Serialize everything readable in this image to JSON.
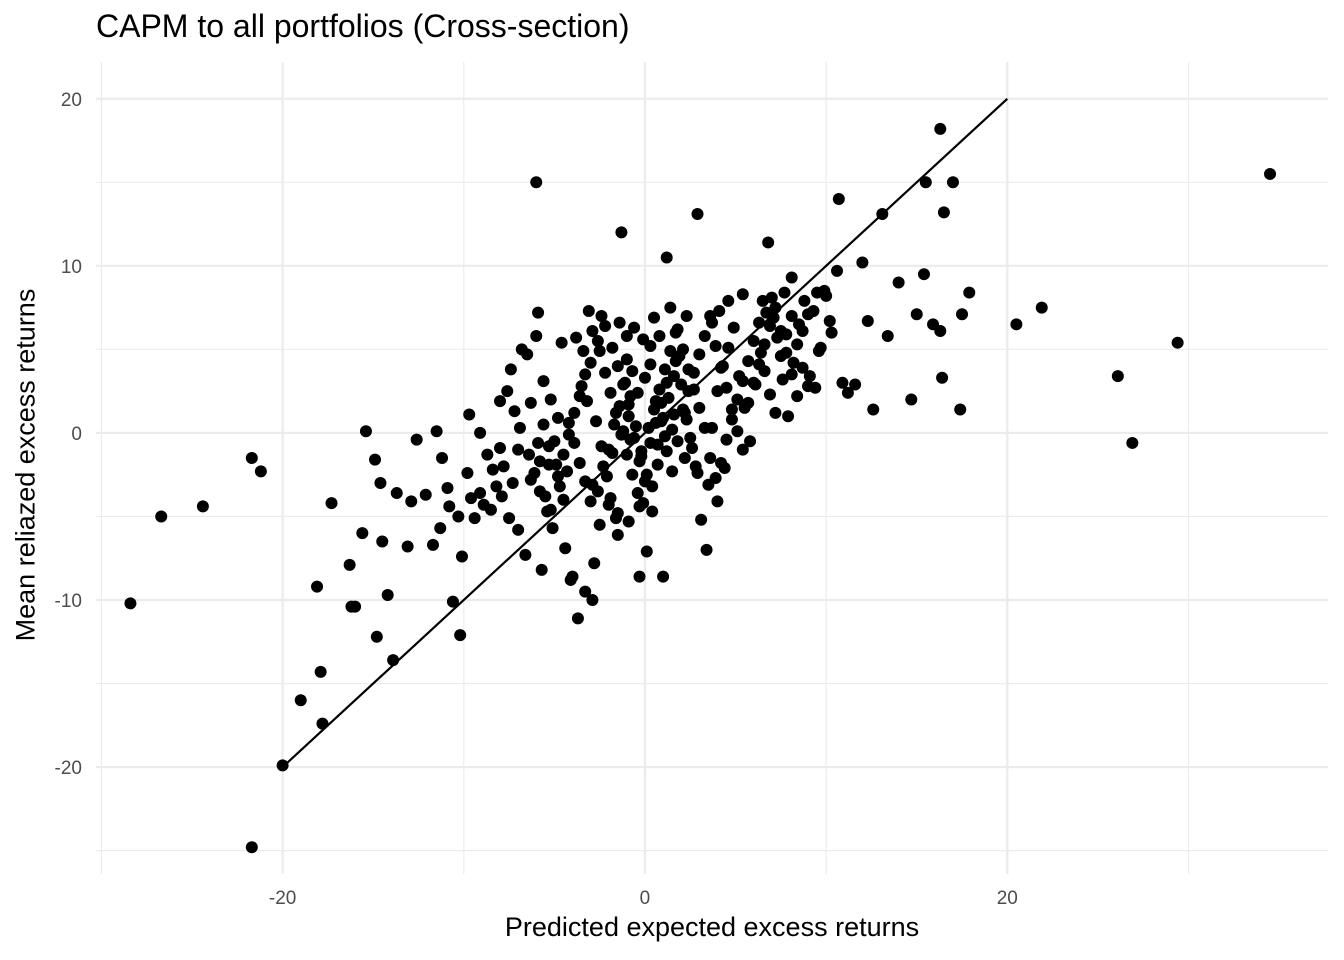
{
  "chart_data": {
    "type": "scatter",
    "title": "CAPM to all portfolios (Cross-section)",
    "xlabel": "Predicted expected excess returns",
    "ylabel": "Mean reliazed excess returns",
    "xlim": [
      -30.3,
      37.7
    ],
    "ylim": [
      -26.4,
      22.2
    ],
    "x_ticks": [
      -20,
      0,
      20
    ],
    "y_ticks": [
      -20,
      -10,
      0,
      10,
      20
    ],
    "x_tick_labels": [
      "-20",
      "0",
      "20"
    ],
    "y_tick_labels": [
      "-20",
      "-10",
      "0",
      "10",
      "20"
    ],
    "grid": true,
    "legend": "none",
    "colors": {
      "points": "#000000",
      "line": "#000000",
      "grid": "#ebebeb",
      "background": "#ffffff",
      "tick_text": "#4d4d4d"
    },
    "reference_line": {
      "type": "45-degree",
      "from": [
        -20,
        -20
      ],
      "to": [
        20,
        20
      ]
    },
    "points": [
      [
        -28.4,
        -10.2
      ],
      [
        -26.7,
        -5.0
      ],
      [
        -24.4,
        -4.4
      ],
      [
        -21.7,
        -1.5
      ],
      [
        -21.2,
        -2.3
      ],
      [
        -21.7,
        -24.8
      ],
      [
        -20.0,
        -19.9
      ],
      [
        -19.0,
        -16.0
      ],
      [
        -17.8,
        -17.4
      ],
      [
        -17.9,
        -14.3
      ],
      [
        -18.1,
        -9.2
      ],
      [
        -17.3,
        -4.2
      ],
      [
        -16.3,
        -7.9
      ],
      [
        -16.2,
        -10.4
      ],
      [
        -15.6,
        -6.0
      ],
      [
        -14.9,
        -1.6
      ],
      [
        -14.6,
        -3.0
      ],
      [
        -14.5,
        -6.5
      ],
      [
        -14.2,
        -9.7
      ],
      [
        -13.9,
        -13.6
      ],
      [
        -14.8,
        -12.2
      ],
      [
        -13.7,
        -3.6
      ],
      [
        -13.1,
        -6.8
      ],
      [
        -12.6,
        -0.4
      ],
      [
        -12.1,
        -3.7
      ],
      [
        -11.7,
        -6.7
      ],
      [
        -11.2,
        -1.5
      ],
      [
        -10.9,
        -3.3
      ],
      [
        -11.3,
        -5.7
      ],
      [
        -10.6,
        -10.1
      ],
      [
        -10.2,
        -12.1
      ],
      [
        -10.1,
        -7.4
      ],
      [
        -9.6,
        -3.9
      ],
      [
        -9.1,
        -3.6
      ],
      [
        -8.5,
        -4.6
      ],
      [
        -8.2,
        -3.2
      ],
      [
        -7.8,
        -2.0
      ],
      [
        -7.5,
        -5.1
      ],
      [
        -7.0,
        -5.8
      ],
      [
        -6.6,
        -7.3
      ],
      [
        -6.3,
        -2.8
      ],
      [
        -5.9,
        -0.6
      ],
      [
        -5.6,
        0.5
      ],
      [
        -5.3,
        -1.9
      ],
      [
        -9.7,
        1.1
      ],
      [
        -9.1,
        0.0
      ],
      [
        -8.7,
        -1.3
      ],
      [
        -8.0,
        -0.9
      ],
      [
        -7.6,
        2.5
      ],
      [
        -7.2,
        1.3
      ],
      [
        -7.0,
        -1.0
      ],
      [
        -6.8,
        5.0
      ],
      [
        -6.5,
        4.7
      ],
      [
        -6.0,
        5.8
      ],
      [
        -5.9,
        7.2
      ],
      [
        -5.6,
        3.1
      ],
      [
        -5.2,
        2.0
      ],
      [
        -5.0,
        -0.5
      ],
      [
        -4.9,
        -1.9
      ],
      [
        -4.7,
        -3.2
      ],
      [
        -4.5,
        -4.0
      ],
      [
        -4.4,
        -6.9
      ],
      [
        -4.0,
        -8.6
      ],
      [
        -4.1,
        -8.8
      ],
      [
        -3.7,
        -11.1
      ],
      [
        -3.3,
        -9.5
      ],
      [
        -2.9,
        -10.0
      ],
      [
        -2.6,
        -3.5
      ],
      [
        -2.3,
        -2.0
      ],
      [
        -2.0,
        -1.0
      ],
      [
        -1.7,
        0.5
      ],
      [
        -1.4,
        1.6
      ],
      [
        -1.1,
        3.0
      ],
      [
        -0.8,
        2.2
      ],
      [
        -0.5,
        0.4
      ],
      [
        -0.2,
        -1.1
      ],
      [
        0.1,
        -2.5
      ],
      [
        0.4,
        -3.2
      ],
      [
        0.7,
        -0.7
      ],
      [
        1.0,
        0.9
      ],
      [
        1.3,
        2.1
      ],
      [
        1.6,
        3.4
      ],
      [
        1.9,
        4.6
      ],
      [
        2.2,
        1.2
      ],
      [
        2.5,
        -0.3
      ],
      [
        2.8,
        -2.0
      ],
      [
        3.1,
        -5.2
      ],
      [
        3.4,
        -7.0
      ],
      [
        3.7,
        0.3
      ],
      [
        4.0,
        2.5
      ],
      [
        4.3,
        4.0
      ],
      [
        4.6,
        5.1
      ],
      [
        4.9,
        6.3
      ],
      [
        5.2,
        3.4
      ],
      [
        5.5,
        1.5
      ],
      [
        5.8,
        -0.5
      ],
      [
        6.1,
        2.9
      ],
      [
        6.4,
        4.8
      ],
      [
        6.7,
        7.2
      ],
      [
        7.0,
        8.1
      ],
      [
        7.3,
        5.7
      ],
      [
        7.6,
        3.2
      ],
      [
        7.9,
        1.0
      ],
      [
        8.2,
        4.2
      ],
      [
        8.5,
        6.5
      ],
      [
        8.8,
        7.9
      ],
      [
        9.1,
        3.4
      ],
      [
        9.4,
        2.7
      ],
      [
        9.7,
        5.1
      ],
      [
        10.0,
        8.2
      ],
      [
        10.3,
        6.0
      ],
      [
        10.6,
        9.7
      ],
      [
        10.9,
        3.0
      ],
      [
        11.2,
        2.4
      ],
      [
        11.6,
        2.9
      ],
      [
        12.0,
        10.2
      ],
      [
        12.3,
        6.7
      ],
      [
        12.6,
        1.4
      ],
      [
        13.1,
        13.1
      ],
      [
        13.4,
        5.8
      ],
      [
        14.0,
        9.0
      ],
      [
        14.7,
        2.0
      ],
      [
        15.0,
        7.1
      ],
      [
        15.4,
        9.5
      ],
      [
        15.9,
        6.5
      ],
      [
        16.3,
        18.2
      ],
      [
        16.5,
        13.2
      ],
      [
        16.4,
        3.3
      ],
      [
        16.3,
        6.1
      ],
      [
        17.0,
        15.0
      ],
      [
        17.4,
        1.4
      ],
      [
        17.5,
        7.1
      ],
      [
        17.9,
        8.4
      ],
      [
        15.5,
        15.0
      ],
      [
        10.7,
        14.0
      ],
      [
        6.8,
        11.4
      ],
      [
        2.9,
        13.1
      ],
      [
        1.2,
        10.5
      ],
      [
        -1.3,
        12.0
      ],
      [
        -6.0,
        15.0
      ],
      [
        20.5,
        6.5
      ],
      [
        21.9,
        7.5
      ],
      [
        26.1,
        3.4
      ],
      [
        26.9,
        -0.6
      ],
      [
        29.4,
        5.4
      ],
      [
        34.5,
        15.5
      ],
      [
        -0.3,
        -8.6
      ],
      [
        0.1,
        -7.1
      ],
      [
        1.0,
        -8.6
      ],
      [
        -1.5,
        -6.1
      ],
      [
        -2.8,
        -7.8
      ],
      [
        -5.7,
        -8.2
      ],
      [
        -2.9,
        -3.1
      ],
      [
        -1.8,
        -1.2
      ],
      [
        -1.2,
        0.1
      ],
      [
        -0.9,
        1.7
      ],
      [
        -0.4,
        2.4
      ],
      [
        0.0,
        3.3
      ],
      [
        0.3,
        4.1
      ],
      [
        0.6,
        1.9
      ],
      [
        0.9,
        0.7
      ],
      [
        1.2,
        -1.1
      ],
      [
        1.5,
        -2.3
      ],
      [
        -3.5,
        2.8
      ],
      [
        -3.2,
        1.9
      ],
      [
        -2.7,
        0.7
      ],
      [
        -2.4,
        -0.8
      ],
      [
        -2.1,
        -2.6
      ],
      [
        -1.9,
        -3.9
      ],
      [
        -1.6,
        -5.1
      ],
      [
        -1.0,
        4.4
      ],
      [
        -0.7,
        3.7
      ],
      [
        -0.1,
        5.6
      ],
      [
        0.5,
        6.9
      ],
      [
        0.8,
        5.8
      ],
      [
        1.4,
        7.5
      ],
      [
        1.8,
        6.2
      ],
      [
        2.1,
        5.0
      ],
      [
        2.4,
        3.8
      ],
      [
        2.7,
        2.6
      ],
      [
        3.0,
        1.5
      ],
      [
        3.3,
        0.3
      ],
      [
        3.6,
        -1.5
      ],
      [
        3.9,
        -2.7
      ],
      [
        4.2,
        -1.8
      ],
      [
        4.5,
        -0.4
      ],
      [
        4.8,
        0.8
      ],
      [
        5.1,
        2.0
      ],
      [
        5.4,
        3.1
      ],
      [
        5.7,
        4.3
      ],
      [
        6.0,
        5.5
      ],
      [
        6.3,
        6.6
      ],
      [
        6.6,
        3.7
      ],
      [
        6.9,
        2.3
      ],
      [
        7.2,
        1.2
      ],
      [
        7.5,
        4.6
      ],
      [
        7.8,
        5.9
      ],
      [
        8.1,
        7.0
      ],
      [
        8.4,
        5.3
      ],
      [
        8.7,
        3.9
      ],
      [
        9.0,
        2.8
      ],
      [
        9.3,
        7.3
      ],
      [
        9.6,
        4.9
      ],
      [
        9.9,
        8.5
      ],
      [
        10.2,
        6.7
      ],
      [
        -4.2,
        0.6
      ],
      [
        -3.9,
        -0.6
      ],
      [
        -3.6,
        -1.8
      ],
      [
        -3.3,
        -2.9
      ],
      [
        -3.0,
        -4.1
      ],
      [
        -2.5,
        4.9
      ],
      [
        -2.2,
        3.6
      ],
      [
        -1.9,
        2.4
      ],
      [
        -1.6,
        1.2
      ],
      [
        -1.3,
        -0.1
      ],
      [
        -1.0,
        -1.3
      ],
      [
        -0.7,
        -2.5
      ],
      [
        -0.4,
        -3.6
      ],
      [
        -0.1,
        -4.2
      ],
      [
        0.2,
        0.3
      ],
      [
        0.5,
        1.4
      ],
      [
        0.8,
        2.6
      ],
      [
        1.1,
        3.8
      ],
      [
        1.4,
        4.9
      ],
      [
        1.7,
        6.0
      ],
      [
        2.0,
        2.9
      ],
      [
        2.3,
        0.8
      ],
      [
        2.6,
        -0.9
      ],
      [
        -5.5,
        -3.8
      ],
      [
        -5.2,
        -4.6
      ],
      [
        -4.8,
        -2.6
      ],
      [
        -4.5,
        -1.3
      ],
      [
        -4.2,
        -0.1
      ],
      [
        -3.9,
        1.2
      ],
      [
        -3.6,
        2.2
      ],
      [
        -3.3,
        3.5
      ],
      [
        -3.0,
        4.2
      ],
      [
        -2.6,
        5.5
      ],
      [
        -2.2,
        6.4
      ],
      [
        -1.8,
        5.1
      ],
      [
        -1.5,
        4.0
      ],
      [
        -1.2,
        2.9
      ],
      [
        -0.9,
        1.0
      ],
      [
        -0.6,
        -0.3
      ],
      [
        -0.3,
        -1.7
      ],
      [
        0.0,
        -2.9
      ],
      [
        0.3,
        -0.6
      ],
      [
        0.6,
        0.6
      ],
      [
        0.9,
        1.8
      ],
      [
        1.2,
        3.0
      ],
      [
        1.5,
        0.2
      ],
      [
        1.8,
        -0.5
      ],
      [
        2.1,
        1.4
      ],
      [
        2.4,
        2.5
      ],
      [
        2.7,
        3.6
      ],
      [
        3.0,
        4.7
      ],
      [
        3.3,
        5.8
      ],
      [
        3.6,
        7.0
      ],
      [
        3.9,
        5.2
      ],
      [
        4.2,
        3.9
      ],
      [
        4.5,
        2.7
      ],
      [
        4.8,
        1.4
      ],
      [
        5.1,
        0.1
      ],
      [
        5.4,
        -1.0
      ],
      [
        5.7,
        1.8
      ],
      [
        6.0,
        3.0
      ],
      [
        6.3,
        4.1
      ],
      [
        6.6,
        5.3
      ],
      [
        6.9,
        6.4
      ],
      [
        7.2,
        7.5
      ],
      [
        7.5,
        6.1
      ],
      [
        7.8,
        4.8
      ],
      [
        8.1,
        3.5
      ],
      [
        8.4,
        2.2
      ],
      [
        8.7,
        6.1
      ],
      [
        9.0,
        7.1
      ],
      [
        -6.4,
        -1.3
      ],
      [
        -6.1,
        -2.4
      ],
      [
        -5.8,
        -3.5
      ],
      [
        -5.4,
        -4.7
      ],
      [
        -5.1,
        -5.7
      ],
      [
        -7.3,
        -3.0
      ],
      [
        -7.9,
        -3.8
      ],
      [
        -8.4,
        -2.2
      ],
      [
        -8.9,
        -4.3
      ],
      [
        -9.4,
        -5.1
      ],
      [
        -9.8,
        -2.4
      ],
      [
        -10.3,
        -5.0
      ],
      [
        -10.8,
        -4.4
      ],
      [
        -11.5,
        0.1
      ],
      [
        -12.9,
        -4.1
      ],
      [
        -15.4,
        0.1
      ],
      [
        -16.0,
        -10.4
      ],
      [
        -3.8,
        5.7
      ],
      [
        -3.4,
        4.9
      ],
      [
        -2.9,
        6.1
      ],
      [
        -2.4,
        7.0
      ],
      [
        -3.1,
        7.3
      ],
      [
        -4.6,
        5.4
      ],
      [
        -1.4,
        6.6
      ],
      [
        -1.0,
        5.8
      ],
      [
        -0.6,
        6.3
      ],
      [
        0.3,
        5.2
      ],
      [
        1.7,
        4.3
      ],
      [
        2.3,
        7.0
      ],
      [
        3.7,
        6.6
      ],
      [
        4.1,
        7.3
      ],
      [
        5.4,
        8.3
      ],
      [
        6.5,
        7.9
      ],
      [
        7.1,
        6.9
      ],
      [
        7.7,
        8.4
      ],
      [
        8.1,
        9.3
      ],
      [
        9.5,
        8.4
      ],
      [
        4.6,
        7.9
      ],
      [
        -8.0,
        1.9
      ],
      [
        -7.4,
        3.8
      ],
      [
        -6.9,
        0.3
      ],
      [
        -6.3,
        1.8
      ],
      [
        -5.8,
        -1.7
      ],
      [
        -5.3,
        -0.8
      ],
      [
        -4.8,
        0.9
      ],
      [
        -4.3,
        -2.3
      ],
      [
        -0.2,
        -1.4
      ],
      [
        -0.8,
        -0.4
      ],
      [
        0.7,
        -1.9
      ],
      [
        1.1,
        -0.2
      ],
      [
        1.6,
        1.1
      ],
      [
        2.2,
        -1.5
      ],
      [
        2.9,
        -2.4
      ],
      [
        3.5,
        -3.1
      ],
      [
        4.0,
        -4.1
      ],
      [
        4.4,
        -2.1
      ],
      [
        -2.0,
        -4.3
      ],
      [
        -1.5,
        -4.8
      ],
      [
        -0.9,
        -5.3
      ],
      [
        -0.3,
        -4.4
      ],
      [
        0.4,
        -4.7
      ],
      [
        -2.5,
        -5.5
      ]
    ]
  }
}
